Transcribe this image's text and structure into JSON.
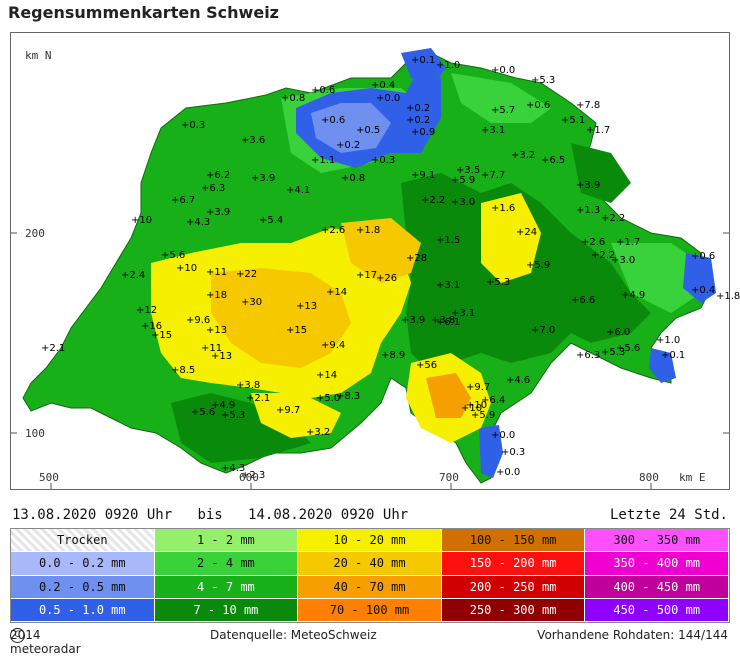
{
  "title": "Regensummenkarten Schweiz",
  "axes": {
    "y_top": "km N",
    "y_200": "200",
    "y_100": "100",
    "x_500": "500",
    "x_600": "600",
    "x_700": "700",
    "x_800": "800",
    "x_unit": "km E"
  },
  "period": {
    "from": "13.08.2020 0920 Uhr",
    "bis": "bis",
    "to": "14.08.2020 0920 Uhr",
    "duration": "Letzte 24 Std."
  },
  "legend": [
    [
      "Trocken",
      "1 - 2 mm",
      "10 - 20 mm",
      "100 - 150 mm",
      "300 - 350 mm"
    ],
    [
      "0.0 - 0.2 mm",
      "2 - 4 mm",
      "20 - 40 mm",
      "150 - 200 mm",
      "350 - 400 mm"
    ],
    [
      "0.2 - 0.5 mm",
      "4 - 7 mm",
      "40 - 70 mm",
      "200 - 250 mm",
      "400 - 450 mm"
    ],
    [
      "0.5 - 1.0 mm",
      "7 - 10 mm",
      "70 - 100 mm",
      "250 - 300 mm",
      "450 - 500 mm"
    ]
  ],
  "legend_colors": [
    [
      "trocken",
      "#94f06a",
      "#f6f000",
      "#d07000",
      "#ff50ff"
    ],
    [
      "#a8b8f8",
      "#3ad23a",
      "#f5c800",
      "#ff1010",
      "#f000d0"
    ],
    [
      "#7090f0",
      "#18b018",
      "#f5a000",
      "#d00000",
      "#c0009a"
    ],
    [
      "#3060e8",
      "#0a8a0a",
      "#ff8000",
      "#900000",
      "#9000ff"
    ]
  ],
  "footer": {
    "copyright_symbol": "C",
    "copyright": "2014  meteoradar",
    "source": "Datenquelle: MeteoSchweiz",
    "raw": "Vorhandene Rohdaten: 144/144"
  },
  "stations": [
    "0.1",
    "1.0",
    "0.0",
    "5.3",
    "0.6",
    "0.4",
    "0.0",
    "0.8",
    "0.2",
    "0.2",
    "5.7",
    "0.6",
    "7.8",
    "0.3",
    "0.6",
    "0.5",
    "0.2",
    "0.9",
    "3.1",
    "5.1",
    "1.7",
    "3.6",
    "1.1",
    "0.3",
    "3.2",
    "6.5",
    "6.2",
    "3.9",
    "0.8",
    "9.1",
    "3.5",
    "6.3",
    "4.1",
    "5.9",
    "7.7",
    "3.9",
    "6.7",
    "3.9",
    "5.4",
    "2.2",
    "3.0",
    "1.6",
    "1.3",
    "10",
    "4.3",
    "2.6",
    "1.8",
    "2.2",
    "24",
    "2.6",
    "1.7",
    "2.2",
    "5.6",
    "1.5",
    "3.0",
    "0.6",
    "10",
    "11",
    "22",
    "17",
    "26",
    "28",
    "5.9",
    "2.4",
    "14",
    "3.1",
    "5.3",
    "0.4",
    "18",
    "30",
    "13",
    "12",
    "6.6",
    "4.9",
    "1.8",
    "16",
    "9.6",
    "13",
    "3.9",
    "3.8",
    "15",
    "15",
    "11",
    "6.1",
    "3.1",
    "7.0",
    "1.0",
    "6.0",
    "5.6",
    "6.3",
    "2.1",
    "13",
    "9.4",
    "8.9",
    "5.3",
    "0.1",
    "8.5",
    "14",
    "56",
    "4.6",
    "3.8",
    "2.1",
    "9.7",
    "10",
    "9.7",
    "6.4",
    "5.3",
    "4.9",
    "5.6",
    "5.0",
    "8.3",
    "10",
    "5.9",
    "3.2",
    "0.0",
    "0.3",
    "0.0",
    "4.3",
    "2.3"
  ]
}
